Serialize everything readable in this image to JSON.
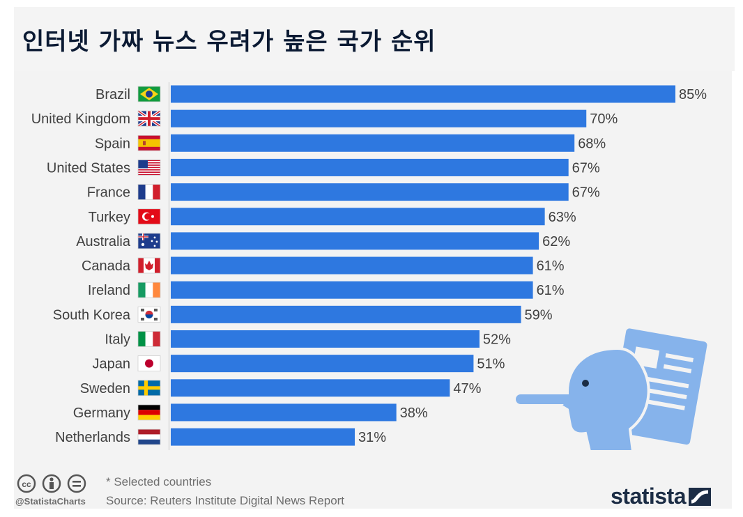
{
  "title": "인터넷 가짜 뉴스 우려가 높은 국가 순위",
  "chart_data": {
    "type": "bar",
    "orientation": "horizontal",
    "title": "인터넷 가짜 뉴스 우려가 높은 국가 순위",
    "xlabel": "",
    "ylabel": "",
    "xlim": [
      0,
      85
    ],
    "categories": [
      "Brazil",
      "United Kingdom",
      "Spain",
      "United States",
      "France",
      "Turkey",
      "Australia",
      "Canada",
      "Ireland",
      "South Korea",
      "Italy",
      "Japan",
      "Sweden",
      "Germany",
      "Netherlands"
    ],
    "values": [
      85,
      70,
      68,
      67,
      67,
      63,
      62,
      61,
      61,
      59,
      52,
      51,
      47,
      38,
      31
    ],
    "value_labels": [
      "85%",
      "70%",
      "68%",
      "67%",
      "67%",
      "63%",
      "62%",
      "61%",
      "61%",
      "59%",
      "52%",
      "51%",
      "47%",
      "38%",
      "31%"
    ],
    "flags": [
      "brazil-flag",
      "uk-flag",
      "spain-flag",
      "usa-flag",
      "france-flag",
      "turkey-flag",
      "australia-flag",
      "canada-flag",
      "ireland-flag",
      "south-korea-flag",
      "italy-flag",
      "japan-flag",
      "sweden-flag",
      "germany-flag",
      "netherlands-flag"
    ],
    "bar_color": "#2e78e0",
    "grid": false
  },
  "footer": {
    "note": "* Selected countries",
    "source": "Source: Reuters Institute Digital News Report",
    "handle": "@StatistaCharts"
  },
  "brand": {
    "name": "statista",
    "color": "#1c2d45"
  },
  "illustration": {
    "icon": "pinocchio-fake-news-icon",
    "color": "#86b3eb"
  }
}
